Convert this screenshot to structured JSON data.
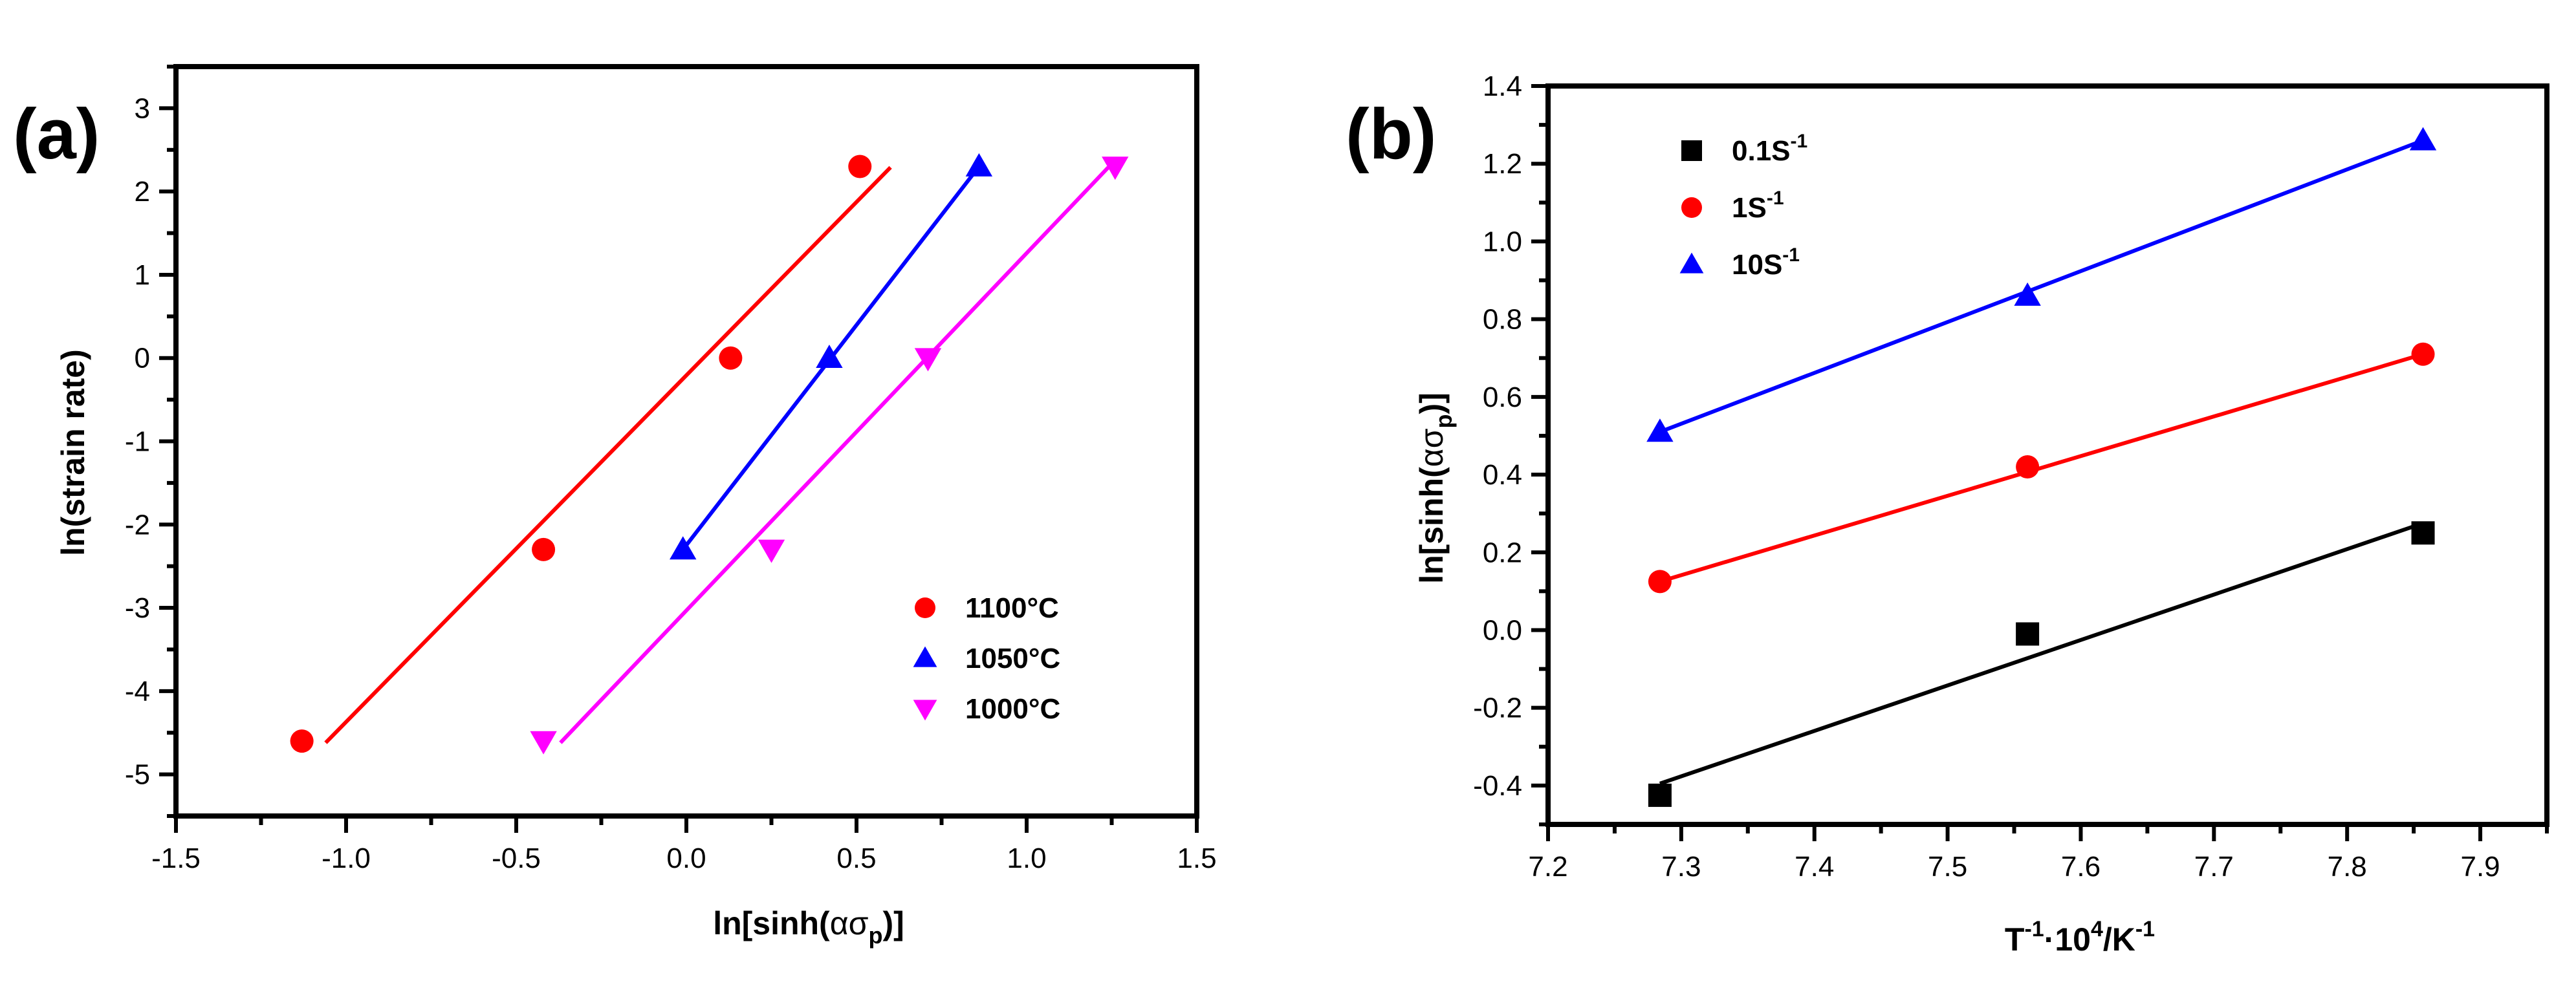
{
  "chart_data": [
    {
      "type": "scatter",
      "panel_label": "(a)",
      "title": "",
      "xlabel_prefix": "ln[sinh(",
      "xlabel_greek": "ασ",
      "xlabel_sub": "p",
      "xlabel_suffix": ")]",
      "ylabel": "ln(strain rate)",
      "xlim": [
        -1.5,
        1.5
      ],
      "ylim": [
        -5.5,
        3.5
      ],
      "xticks": [
        "-1.5",
        "-1.0",
        "-0.5",
        "0.0",
        "0.5",
        "1.0",
        "1.5"
      ],
      "yticks": [
        "-5",
        "-4",
        "-3",
        "-2",
        "-1",
        "0",
        "1",
        "2",
        "3"
      ],
      "legend_position": "bottom-right",
      "series": [
        {
          "name": "1100°C",
          "marker": "circle",
          "color": "#ff0000",
          "points": [
            [
              -1.13,
              -4.6
            ],
            [
              -0.42,
              -2.3
            ],
            [
              0.13,
              0.0
            ],
            [
              0.51,
              2.3
            ]
          ],
          "fit_line": [
            [
              -1.06,
              -4.62
            ],
            [
              0.6,
              2.29
            ]
          ]
        },
        {
          "name": "1050°C",
          "marker": "triangle-up",
          "color": "#0000ff",
          "points": [
            [
              -0.01,
              -2.3
            ],
            [
              0.42,
              0.0
            ],
            [
              0.86,
              2.3
            ]
          ],
          "fit_line": [
            [
              -0.01,
              -2.3
            ],
            [
              0.86,
              2.3
            ]
          ]
        },
        {
          "name": "1000°C",
          "marker": "triangle-down",
          "color": "#ff00ff",
          "points": [
            [
              -0.42,
              -4.6
            ],
            [
              0.25,
              -2.3
            ],
            [
              0.71,
              0.0
            ],
            [
              1.26,
              2.3
            ]
          ],
          "fit_line": [
            [
              -0.37,
              -4.62
            ],
            [
              1.24,
              2.29
            ]
          ]
        }
      ]
    },
    {
      "type": "scatter",
      "panel_label": "(b)",
      "title": "",
      "xlabel_T": "T",
      "xlabel_exp1": "-1",
      "xlabel_mid": "·10",
      "xlabel_exp2": "4",
      "xlabel_unit": "/K",
      "xlabel_exp3": "-1",
      "ylabel_prefix": "ln[sinh(",
      "ylabel_greek": "ασ",
      "ylabel_sub": "p",
      "ylabel_suffix": ")]",
      "xlim": [
        7.2,
        7.95
      ],
      "ylim": [
        -0.5,
        1.4
      ],
      "xticks": [
        "7.2",
        "7.3",
        "7.4",
        "7.5",
        "7.6",
        "7.7",
        "7.8",
        "7.9"
      ],
      "yticks": [
        "-0.4",
        "-0.2",
        "0.0",
        "0.2",
        "0.4",
        "0.6",
        "0.8",
        "1.0",
        "1.2",
        "1.4"
      ],
      "legend_position": "top-left",
      "series": [
        {
          "name_base": "0.1S",
          "name_exp": "-1",
          "marker": "square",
          "color": "#000000",
          "points": [
            [
              7.284,
              -0.425
            ],
            [
              7.56,
              -0.01
            ],
            [
              7.857,
              0.25
            ]
          ],
          "fit_line": [
            [
              7.284,
              -0.395
            ],
            [
              7.857,
              0.275
            ]
          ]
        },
        {
          "name_base": "1S",
          "name_exp": "-1",
          "marker": "circle",
          "color": "#ff0000",
          "points": [
            [
              7.284,
              0.125
            ],
            [
              7.56,
              0.42
            ],
            [
              7.857,
              0.71
            ]
          ],
          "fit_line": [
            [
              7.284,
              0.125
            ],
            [
              7.857,
              0.71
            ]
          ]
        },
        {
          "name_base": "10S",
          "name_exp": "-1",
          "marker": "triangle-up",
          "color": "#0000ff",
          "points": [
            [
              7.284,
              0.51
            ],
            [
              7.56,
              0.86
            ],
            [
              7.857,
              1.26
            ]
          ],
          "fit_line": [
            [
              7.284,
              0.51
            ],
            [
              7.857,
              1.26
            ]
          ]
        }
      ]
    }
  ]
}
